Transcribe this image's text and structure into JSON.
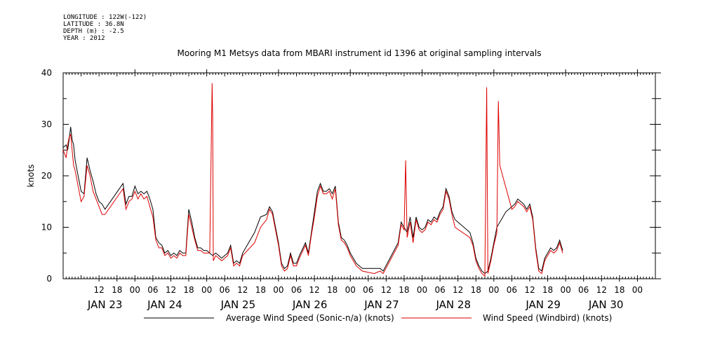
{
  "meta": {
    "longitude": "LONGITUDE : 122W(-122)",
    "latitude": "LATITUDE : 36.8N",
    "depth": "DEPTH (m) : -2.5",
    "year": "YEAR : 2012"
  },
  "chart_data": {
    "type": "line",
    "title": "Mooring M1 Metsys data from MBARI instrument id 1396 at original sampling intervals",
    "ylabel": "knots",
    "xlabel": "",
    "ylim": [
      0,
      40
    ],
    "yticks": [
      0,
      10,
      20,
      30,
      40
    ],
    "xlim_hours": [
      0,
      198
    ],
    "x_ticks": [
      {
        "h": 12,
        "label": "12"
      },
      {
        "h": 18,
        "label": "18"
      },
      {
        "h": 24,
        "label": "00"
      },
      {
        "h": 30,
        "label": "06"
      },
      {
        "h": 36,
        "label": "12"
      },
      {
        "h": 42,
        "label": "18"
      },
      {
        "h": 48,
        "label": "00"
      },
      {
        "h": 54,
        "label": "06"
      },
      {
        "h": 60,
        "label": "12"
      },
      {
        "h": 66,
        "label": "18"
      },
      {
        "h": 72,
        "label": "00"
      },
      {
        "h": 78,
        "label": "06"
      },
      {
        "h": 84,
        "label": "12"
      },
      {
        "h": 90,
        "label": "18"
      },
      {
        "h": 96,
        "label": "00"
      },
      {
        "h": 102,
        "label": "06"
      },
      {
        "h": 108,
        "label": "12"
      },
      {
        "h": 114,
        "label": "18"
      },
      {
        "h": 120,
        "label": "00"
      },
      {
        "h": 126,
        "label": "06"
      },
      {
        "h": 132,
        "label": "12"
      },
      {
        "h": 138,
        "label": "18"
      },
      {
        "h": 144,
        "label": "00"
      },
      {
        "h": 150,
        "label": "06"
      },
      {
        "h": 156,
        "label": "12"
      },
      {
        "h": 162,
        "label": "18"
      },
      {
        "h": 168,
        "label": "00"
      },
      {
        "h": 174,
        "label": "06"
      },
      {
        "h": 180,
        "label": "12"
      },
      {
        "h": 186,
        "label": "18"
      },
      {
        "h": 192,
        "label": "00"
      }
    ],
    "date_labels": [
      {
        "h": 14,
        "label": "JAN 23"
      },
      {
        "h": 34,
        "label": "JAN 24"
      },
      {
        "h": 58.5,
        "label": "JAN 25"
      },
      {
        "h": 82.5,
        "label": "JAN 26"
      },
      {
        "h": 106.5,
        "label": "JAN 27"
      },
      {
        "h": 130.5,
        "label": "JAN 28"
      },
      {
        "h": 160.5,
        "label": "JAN 29"
      },
      {
        "h": 181.5,
        "label": "JAN 30"
      }
    ],
    "series": [
      {
        "name": "Average Wind Speed (Sonic-n/a) (knots)",
        "color": "#000000",
        "points": [
          [
            0,
            25.5
          ],
          [
            1,
            26
          ],
          [
            1.5,
            25
          ],
          [
            2,
            27
          ],
          [
            2.5,
            29.5
          ],
          [
            3,
            27
          ],
          [
            3.5,
            26
          ],
          [
            4,
            23
          ],
          [
            5,
            20
          ],
          [
            6,
            17
          ],
          [
            7,
            16.5
          ],
          [
            8,
            23.5
          ],
          [
            9,
            21
          ],
          [
            10,
            19
          ],
          [
            11,
            16.5
          ],
          [
            12,
            15
          ],
          [
            13,
            14.5
          ],
          [
            14,
            13.5
          ],
          [
            20,
            18.5
          ],
          [
            21,
            14.5
          ],
          [
            22,
            16
          ],
          [
            23,
            16
          ],
          [
            24,
            18
          ],
          [
            25,
            16.5
          ],
          [
            26,
            17
          ],
          [
            27,
            16.5
          ],
          [
            28,
            17
          ],
          [
            29,
            15.5
          ],
          [
            30,
            13.5
          ],
          [
            31,
            8
          ],
          [
            32,
            7
          ],
          [
            33,
            6.5
          ],
          [
            34,
            5
          ],
          [
            35,
            5.5
          ],
          [
            36,
            4.5
          ],
          [
            37,
            5
          ],
          [
            38,
            4.5
          ],
          [
            39,
            5.5
          ],
          [
            40,
            5
          ],
          [
            41,
            5
          ],
          [
            42,
            13.5
          ],
          [
            43,
            11
          ],
          [
            44,
            8
          ],
          [
            45,
            6
          ],
          [
            46,
            6
          ],
          [
            47,
            5.5
          ],
          [
            48,
            5.5
          ],
          [
            49,
            5
          ],
          [
            50,
            4.5
          ],
          [
            51,
            5
          ],
          [
            52,
            4.5
          ],
          [
            53,
            4
          ],
          [
            54,
            4.5
          ],
          [
            55,
            5
          ],
          [
            56,
            6.5
          ],
          [
            57,
            3
          ],
          [
            58,
            3.5
          ],
          [
            59,
            3
          ],
          [
            60,
            5
          ],
          [
            64,
            9
          ],
          [
            66,
            12
          ],
          [
            68,
            12.5
          ],
          [
            69,
            14
          ],
          [
            70,
            13
          ],
          [
            71,
            10
          ],
          [
            72,
            7
          ],
          [
            73,
            3
          ],
          [
            74,
            2
          ],
          [
            75,
            2.5
          ],
          [
            76,
            5
          ],
          [
            77,
            3
          ],
          [
            78,
            3
          ],
          [
            79,
            4.5
          ],
          [
            81,
            7
          ],
          [
            82,
            5
          ],
          [
            83,
            9
          ],
          [
            84,
            13
          ],
          [
            85,
            17
          ],
          [
            86,
            18.5
          ],
          [
            87,
            17
          ],
          [
            88,
            17
          ],
          [
            89,
            17.5
          ],
          [
            90,
            16.5
          ],
          [
            91,
            18
          ],
          [
            92,
            11
          ],
          [
            93,
            8
          ],
          [
            94,
            7.5
          ],
          [
            95,
            6.5
          ],
          [
            96,
            5
          ],
          [
            97,
            4
          ],
          [
            98,
            3
          ],
          [
            99,
            2.5
          ],
          [
            100,
            2
          ],
          [
            104,
            2
          ],
          [
            106,
            2
          ],
          [
            107,
            1.5
          ],
          [
            112,
            7
          ],
          [
            113,
            11
          ],
          [
            114,
            10
          ],
          [
            115,
            9
          ],
          [
            116,
            12
          ],
          [
            117,
            8
          ],
          [
            118,
            12
          ],
          [
            119,
            10
          ],
          [
            120,
            9.5
          ],
          [
            121,
            10
          ],
          [
            122,
            11.5
          ],
          [
            123,
            11
          ],
          [
            124,
            12
          ],
          [
            125,
            11.5
          ],
          [
            126,
            13
          ],
          [
            127,
            14
          ],
          [
            128,
            17.5
          ],
          [
            129,
            16
          ],
          [
            130,
            13
          ],
          [
            131,
            11.5
          ],
          [
            136,
            9
          ],
          [
            137,
            7
          ],
          [
            138,
            4
          ],
          [
            139,
            2.5
          ],
          [
            140,
            1.5
          ],
          [
            141,
            1
          ],
          [
            142,
            1.5
          ],
          [
            143,
            4
          ],
          [
            144,
            7
          ],
          [
            145,
            10
          ],
          [
            148,
            13
          ],
          [
            150,
            14
          ],
          [
            151,
            14.5
          ],
          [
            152,
            15.5
          ],
          [
            153,
            15
          ],
          [
            154,
            14.5
          ],
          [
            155,
            13.5
          ],
          [
            156,
            14.5
          ],
          [
            157,
            12
          ],
          [
            158,
            6
          ],
          [
            159,
            2
          ],
          [
            160,
            1.5
          ],
          [
            161,
            4
          ],
          [
            162,
            5
          ],
          [
            163,
            6
          ],
          [
            164,
            5.5
          ],
          [
            165,
            6
          ],
          [
            166,
            7.5
          ],
          [
            167,
            5.5
          ]
        ]
      },
      {
        "name": "Wind Speed (Windbird) (knots)",
        "color": "#dd0000",
        "points": [
          [
            0,
            25
          ],
          [
            1,
            23.5
          ],
          [
            1.5,
            26
          ],
          [
            2,
            27.5
          ],
          [
            2.5,
            28
          ],
          [
            3,
            25
          ],
          [
            3.5,
            22
          ],
          [
            4,
            21
          ],
          [
            5,
            18
          ],
          [
            6,
            15
          ],
          [
            7,
            16
          ],
          [
            8,
            22
          ],
          [
            9,
            20
          ],
          [
            10,
            17
          ],
          [
            11,
            15.5
          ],
          [
            12,
            14
          ],
          [
            13,
            12.5
          ],
          [
            14,
            12.5
          ],
          [
            20,
            17.5
          ],
          [
            21,
            13.5
          ],
          [
            22,
            15
          ],
          [
            23,
            15.5
          ],
          [
            24,
            17
          ],
          [
            25,
            15.5
          ],
          [
            26,
            16.5
          ],
          [
            27,
            15.5
          ],
          [
            28,
            16
          ],
          [
            29,
            14
          ],
          [
            30,
            12
          ],
          [
            31,
            7.5
          ],
          [
            32,
            6
          ],
          [
            33,
            6
          ],
          [
            34,
            4.5
          ],
          [
            35,
            5
          ],
          [
            36,
            4
          ],
          [
            37,
            4.5
          ],
          [
            38,
            4
          ],
          [
            39,
            5
          ],
          [
            40,
            4.5
          ],
          [
            41,
            4.5
          ],
          [
            42,
            12.5
          ],
          [
            43,
            10
          ],
          [
            44,
            7.5
          ],
          [
            45,
            5.5
          ],
          [
            46,
            5.5
          ],
          [
            47,
            5
          ],
          [
            48,
            5
          ],
          [
            49,
            5
          ],
          [
            49.8,
            38
          ],
          [
            50,
            31
          ],
          [
            50.2,
            3.5
          ],
          [
            51,
            4.5
          ],
          [
            52,
            4
          ],
          [
            53,
            3.5
          ],
          [
            54,
            4
          ],
          [
            55,
            4.5
          ],
          [
            56,
            6
          ],
          [
            57,
            2.5
          ],
          [
            58,
            3
          ],
          [
            59,
            2.5
          ],
          [
            60,
            4.5
          ],
          [
            64,
            7
          ],
          [
            66,
            10
          ],
          [
            68,
            11.5
          ],
          [
            69,
            13.5
          ],
          [
            70,
            12.5
          ],
          [
            71,
            9.5
          ],
          [
            72,
            6.5
          ],
          [
            73,
            2.5
          ],
          [
            74,
            1.5
          ],
          [
            75,
            2
          ],
          [
            76,
            4.5
          ],
          [
            77,
            2.5
          ],
          [
            78,
            2.5
          ],
          [
            79,
            4
          ],
          [
            81,
            6.5
          ],
          [
            82,
            4.5
          ],
          [
            83,
            8.5
          ],
          [
            84,
            12
          ],
          [
            85,
            16
          ],
          [
            86,
            18
          ],
          [
            87,
            16.5
          ],
          [
            88,
            16.5
          ],
          [
            89,
            17
          ],
          [
            90,
            15.5
          ],
          [
            91,
            17.5
          ],
          [
            92,
            10.5
          ],
          [
            93,
            7.5
          ],
          [
            94,
            7
          ],
          [
            95,
            6
          ],
          [
            96,
            4.5
          ],
          [
            97,
            3.5
          ],
          [
            98,
            2.5
          ],
          [
            99,
            2
          ],
          [
            100,
            1.5
          ],
          [
            104,
            1
          ],
          [
            106,
            1.5
          ],
          [
            107,
            1
          ],
          [
            112,
            6.5
          ],
          [
            113,
            10.5
          ],
          [
            114,
            9.5
          ],
          [
            114.5,
            23
          ],
          [
            115,
            8
          ],
          [
            116,
            11
          ],
          [
            117,
            7
          ],
          [
            118,
            11.5
          ],
          [
            119,
            9.5
          ],
          [
            120,
            9
          ],
          [
            121,
            9.5
          ],
          [
            122,
            11
          ],
          [
            123,
            10.5
          ],
          [
            124,
            11.5
          ],
          [
            125,
            11
          ],
          [
            126,
            12.5
          ],
          [
            127,
            13.5
          ],
          [
            128,
            17
          ],
          [
            129,
            15.5
          ],
          [
            130,
            12.5
          ],
          [
            131,
            10
          ],
          [
            136,
            8
          ],
          [
            137,
            6.5
          ],
          [
            138,
            3.5
          ],
          [
            139,
            2
          ],
          [
            140,
            1
          ],
          [
            141,
            0.5
          ],
          [
            141.6,
            37.2
          ],
          [
            142,
            1
          ],
          [
            143,
            3.5
          ],
          [
            144,
            6.5
          ],
          [
            145,
            9
          ],
          [
            145.5,
            34.5
          ],
          [
            146,
            22
          ],
          [
            150,
            13.5
          ],
          [
            151,
            14
          ],
          [
            152,
            15
          ],
          [
            153,
            14.5
          ],
          [
            154,
            14
          ],
          [
            155,
            13
          ],
          [
            156,
            14
          ],
          [
            157,
            11.5
          ],
          [
            158,
            5.5
          ],
          [
            159,
            1.5
          ],
          [
            160,
            1
          ],
          [
            161,
            3.5
          ],
          [
            162,
            4.5
          ],
          [
            163,
            5.5
          ],
          [
            164,
            5
          ],
          [
            165,
            5.5
          ],
          [
            166,
            7
          ],
          [
            167,
            5
          ]
        ]
      }
    ]
  }
}
